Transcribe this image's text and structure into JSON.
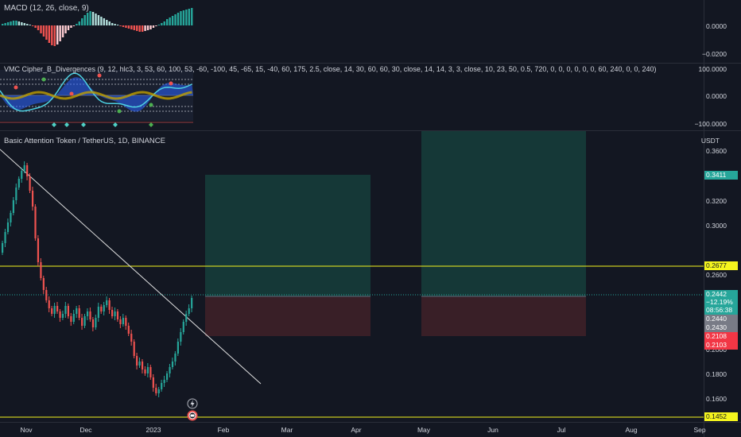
{
  "macd": {
    "label": "MACD (12, 26, close, 9)",
    "axis": [
      "0.0000",
      "−0.0200"
    ],
    "colors": {
      "pos": "#26a69a",
      "pos_light": "#b2dfdb",
      "neg": "#ef5350",
      "neg_light": "#ffcdd2"
    }
  },
  "vmc": {
    "label": "VMC Cipher_B_Divergences (9, 12, hlc3, 3, 53, 60, 100, 53, -60, -100, 45, -65, 15, -40, 60, 175, 2.5, close, 14, 30, 60, 60, 30, close, 14, 14, 3, 3, close, 10, 23, 50, 0.5, 720, 0, 0, 0, 0, 0, 0, 60, 240, 0, 0, 240)",
    "axis": [
      "100.0000",
      "0.0000",
      "−100.0000"
    ]
  },
  "main": {
    "title": "Basic Attention Token / TetherUS, 1D, BINANCE",
    "currency": "USDT",
    "axis_labels": [
      "0.3600",
      "0.3200",
      "0.3000",
      "0.2600",
      "0.2000",
      "0.1800",
      "0.1600"
    ],
    "badges": {
      "target": "0.3411",
      "resistance": "0.2677",
      "last_price": "0.2442",
      "change": "−12.19%",
      "countdown": "08:56:38",
      "bid": "0.2440",
      "ask": "0.2430",
      "stop_a": "0.2108",
      "stop_b": "0.2103",
      "support": "0.1452"
    },
    "colors": {
      "up": "#26a69a",
      "down": "#ef5350",
      "line_yellow": "#f5f51e",
      "profit": "#1b3a3a",
      "loss": "#3d2129"
    }
  },
  "time_axis": [
    "Nov",
    "Dec",
    "2023",
    "Feb",
    "Mar",
    "Apr",
    "May",
    "Jun",
    "Jul",
    "Aug",
    "Sep"
  ],
  "icons": [
    "lightning-icon",
    "event-icon"
  ]
}
